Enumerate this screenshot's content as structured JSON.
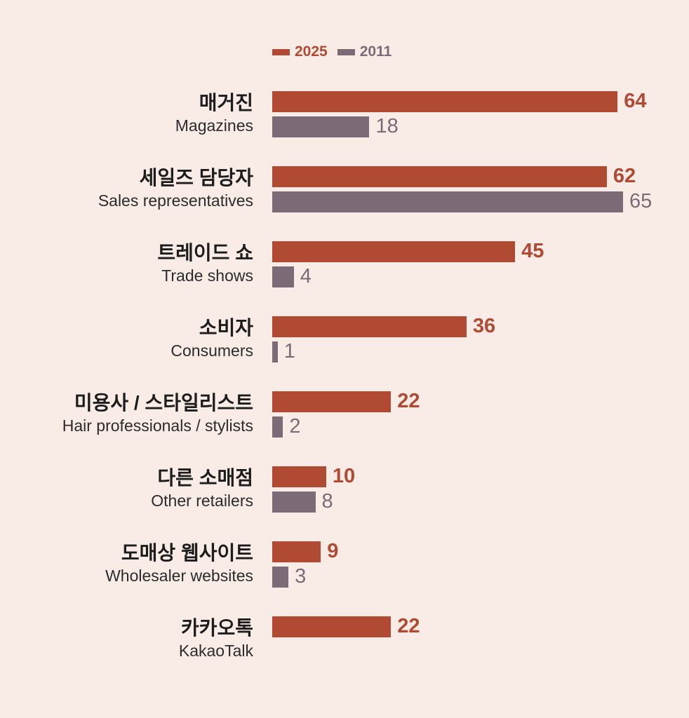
{
  "colors": {
    "background": "#f9ece7",
    "series_2025": "#b04a33",
    "series_2011": "#7c6b76",
    "label_korean": "#1c1c1c",
    "label_english": "#2b2b2b"
  },
  "legend": {
    "items": [
      {
        "label": "2025",
        "color": "#b04a33"
      },
      {
        "label": "2011",
        "color": "#7c6b76"
      }
    ]
  },
  "chart_data": {
    "type": "bar",
    "orientation": "horizontal",
    "title": "",
    "xlabel": "",
    "ylabel": "",
    "xlim": [
      0,
      65
    ],
    "grid": false,
    "legend_position": "top-left",
    "value_labels": "end-of-bar",
    "categories": [
      {
        "ko": "매거진",
        "en": "Magazines"
      },
      {
        "ko": "세일즈 담당자",
        "en": "Sales representatives"
      },
      {
        "ko": "트레이드 쇼",
        "en": "Trade shows"
      },
      {
        "ko": "소비자",
        "en": "Consumers"
      },
      {
        "ko": "미용사 / 스타일리스트",
        "en": "Hair professionals / stylists"
      },
      {
        "ko": "다른 소매점",
        "en": "Other retailers"
      },
      {
        "ko": "도매상 웹사이트",
        "en": "Wholesaler websites"
      },
      {
        "ko": "카카오톡",
        "en": "KakaoTalk"
      }
    ],
    "series": [
      {
        "name": "2025",
        "color": "#b04a33",
        "values": [
          64,
          62,
          45,
          36,
          22,
          10,
          9,
          22
        ]
      },
      {
        "name": "2011",
        "color": "#7c6b76",
        "values": [
          18,
          65,
          4,
          1,
          2,
          8,
          3,
          null
        ]
      }
    ]
  }
}
